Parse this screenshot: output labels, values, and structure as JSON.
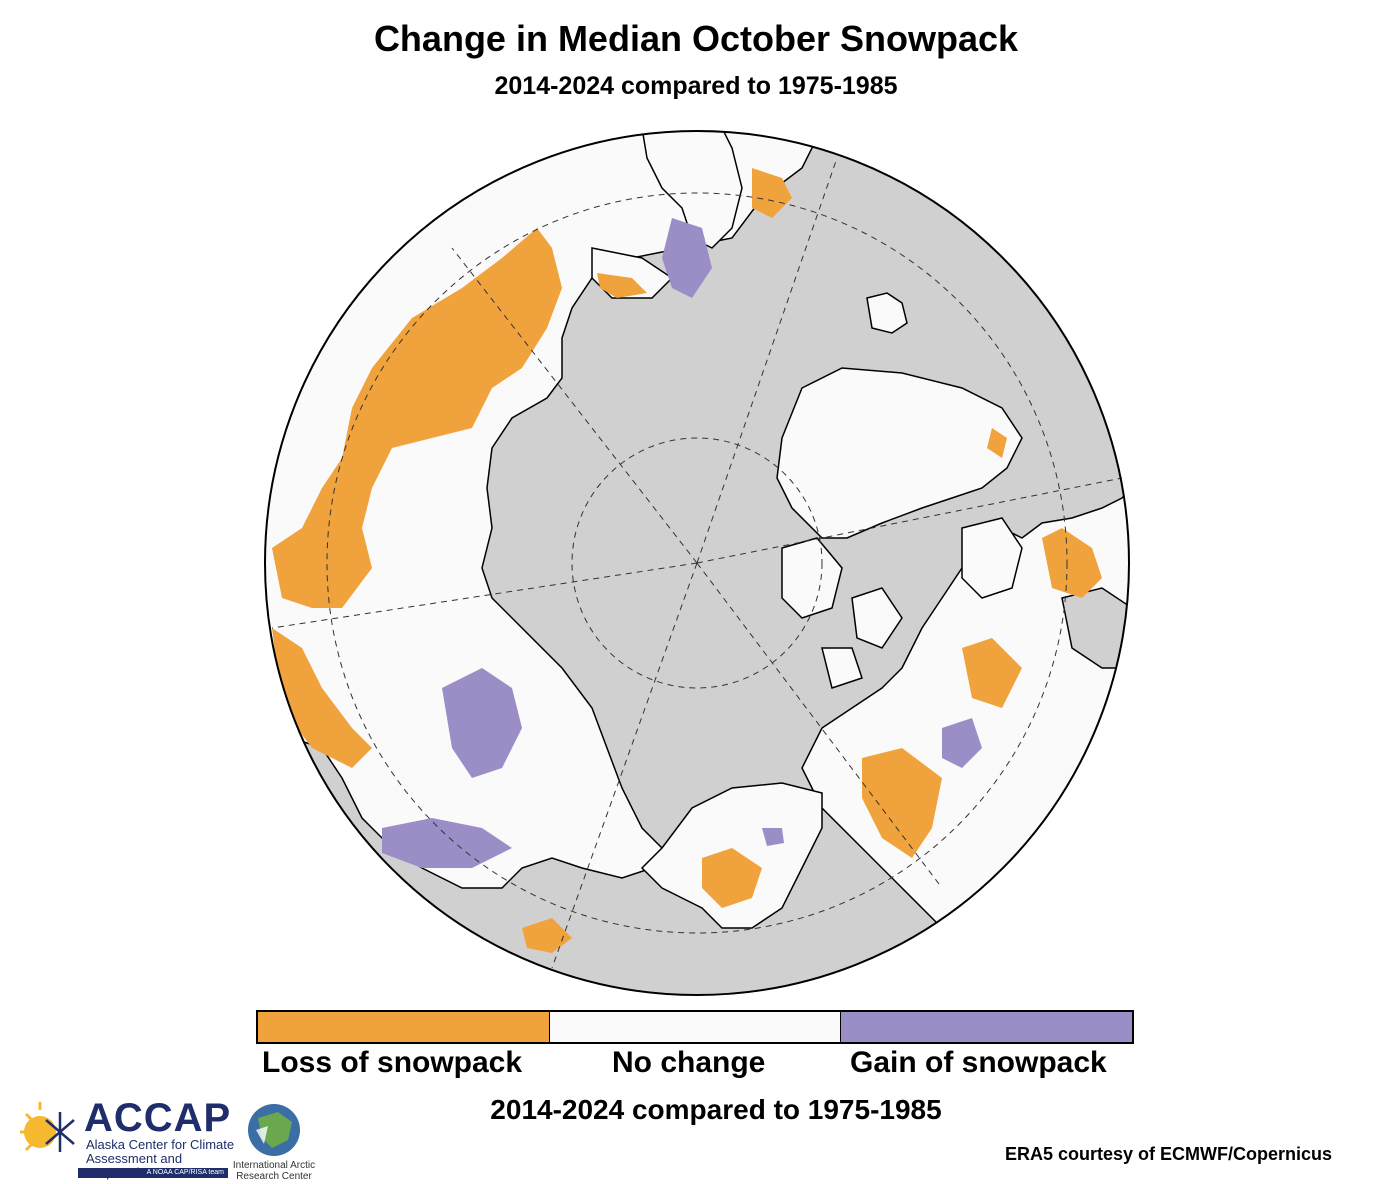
{
  "title": "Change in Median October Snowpack",
  "subtitle": "2014-2024 compared to 1975-1985",
  "legend": {
    "items": [
      {
        "label": "Loss of snowpack",
        "color": "#f0a23c"
      },
      {
        "label": "No change",
        "color": "#fafafa"
      },
      {
        "label": "Gain of snowpack",
        "color": "#9b8dc6"
      }
    ],
    "caption": "2014-2024 compared to 1975-1985"
  },
  "credit": "ERA5 courtesy of ECMWF/Copernicus",
  "logos": {
    "accap": {
      "name": "ACCAP",
      "line1": "Alaska Center for Climate",
      "line2": "Assessment and Preparedness",
      "tag": "A NOAA CAP/RISA team",
      "icon": "sun-snowflake-icon"
    },
    "iarc": {
      "name_line1": "International Arctic",
      "name_line2": "Research Center",
      "icon": "globe-icon"
    }
  },
  "colors": {
    "ocean": "#d0d0d0",
    "land": "#fafafa",
    "loss": "#f0a23c",
    "gain": "#9b8dc6"
  }
}
